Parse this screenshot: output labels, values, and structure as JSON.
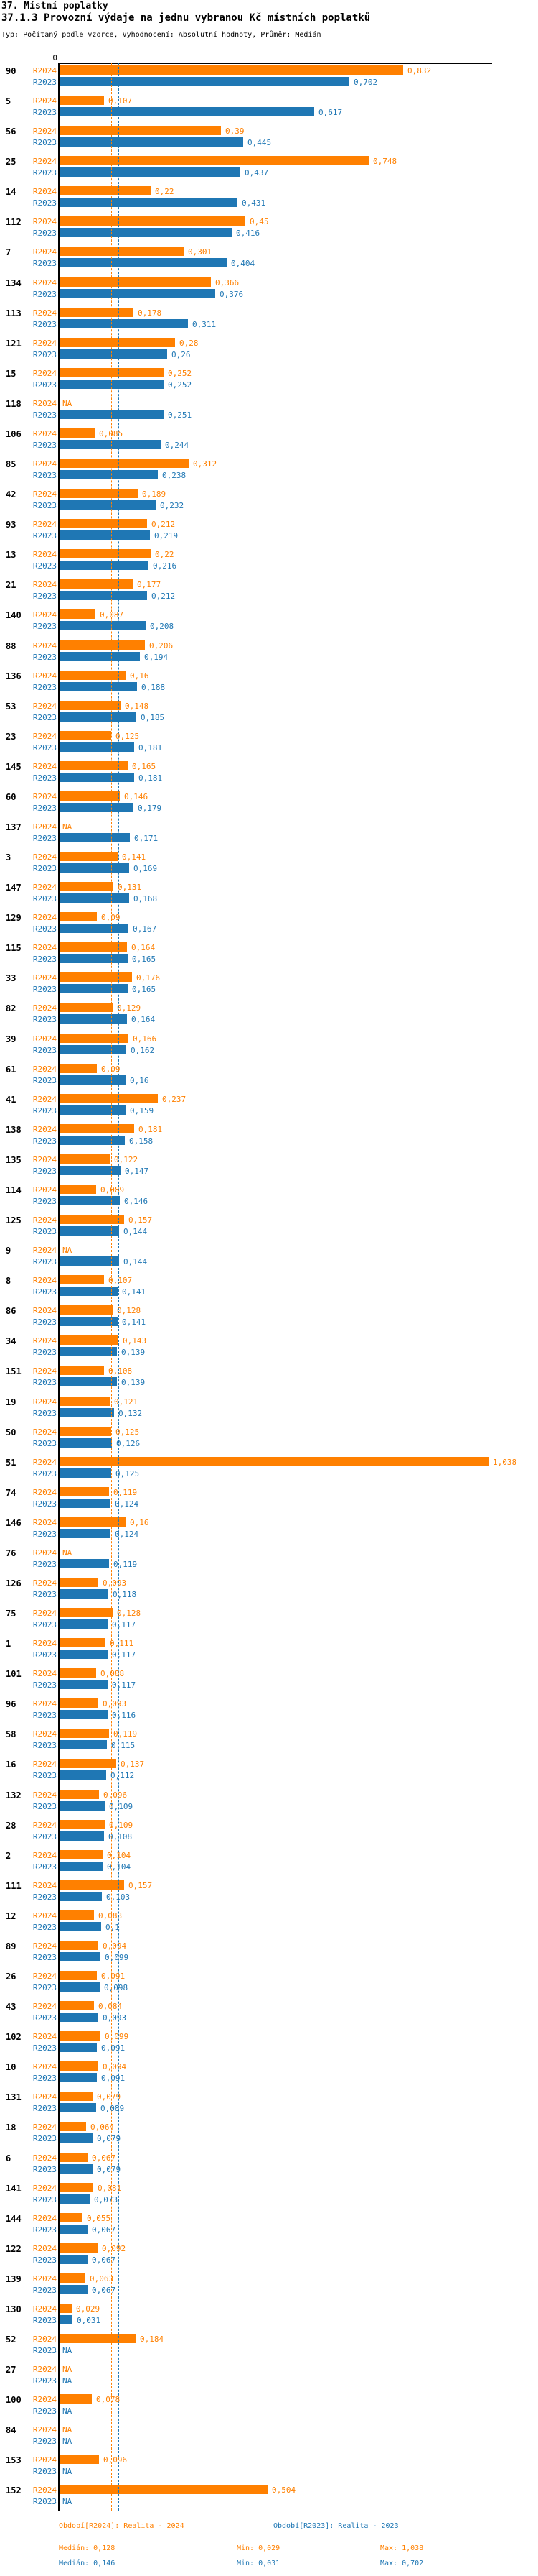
{
  "header": {
    "title": "37. Místní poplatky",
    "subtitle": "37.1.3 Provozní výdaje na jednu vybranou Kč místních poplatků",
    "meta": "Typ: Počítaný podle vzorce, Vyhodnocení: Absolutní hodnoty, Průměr: Medián"
  },
  "colors": {
    "r2024": "#FF8000",
    "r2023": "#1F77B4",
    "axis": "#000000"
  },
  "chart_data": {
    "type": "bar",
    "orientation": "horizontal",
    "title": "37.1.3 Provozní výdaje na jednu vybranou Kč místních poplatků",
    "axis_zero_label": "0",
    "na_label": "NA",
    "value_format": "czech decimal comma, trailing zeros trimmed",
    "xlim": [
      0,
      1.05
    ],
    "grid": false,
    "legend_position": "bottom",
    "series": [
      {
        "name": "R2024",
        "label": "Období[R2024]: Realita - 2024",
        "color": "#FF8000",
        "median": 0.128,
        "min": 0.029,
        "max": 1.038
      },
      {
        "name": "R2023",
        "label": "Období[R2023]: Realita - 2023",
        "color": "#1F77B4",
        "median": 0.146,
        "min": 0.031,
        "max": 0.702
      }
    ],
    "groups": [
      {
        "id": "90",
        "r2024": 0.832,
        "r2023": 0.702
      },
      {
        "id": "5",
        "r2024": 0.107,
        "r2023": 0.617
      },
      {
        "id": "56",
        "r2024": 0.39,
        "r2023": 0.445
      },
      {
        "id": "25",
        "r2024": 0.748,
        "r2023": 0.437
      },
      {
        "id": "14",
        "r2024": 0.22,
        "r2023": 0.431
      },
      {
        "id": "112",
        "r2024": 0.45,
        "r2023": 0.416
      },
      {
        "id": "7",
        "r2024": 0.301,
        "r2023": 0.404
      },
      {
        "id": "134",
        "r2024": 0.366,
        "r2023": 0.376
      },
      {
        "id": "113",
        "r2024": 0.178,
        "r2023": 0.311
      },
      {
        "id": "121",
        "r2024": 0.28,
        "r2023": 0.26
      },
      {
        "id": "15",
        "r2024": 0.252,
        "r2023": 0.252
      },
      {
        "id": "118",
        "r2024": null,
        "r2023": 0.251
      },
      {
        "id": "106",
        "r2024": 0.085,
        "r2023": 0.244
      },
      {
        "id": "85",
        "r2024": 0.312,
        "r2023": 0.238
      },
      {
        "id": "42",
        "r2024": 0.189,
        "r2023": 0.232
      },
      {
        "id": "93",
        "r2024": 0.212,
        "r2023": 0.219
      },
      {
        "id": "13",
        "r2024": 0.22,
        "r2023": 0.216
      },
      {
        "id": "21",
        "r2024": 0.177,
        "r2023": 0.212
      },
      {
        "id": "140",
        "r2024": 0.087,
        "r2023": 0.208
      },
      {
        "id": "88",
        "r2024": 0.206,
        "r2023": 0.194
      },
      {
        "id": "136",
        "r2024": 0.16,
        "r2023": 0.188
      },
      {
        "id": "53",
        "r2024": 0.148,
        "r2023": 0.185
      },
      {
        "id": "23",
        "r2024": 0.125,
        "r2023": 0.181
      },
      {
        "id": "145",
        "r2024": 0.165,
        "r2023": 0.181
      },
      {
        "id": "60",
        "r2024": 0.146,
        "r2023": 0.179
      },
      {
        "id": "137",
        "r2024": null,
        "r2023": 0.171
      },
      {
        "id": "3",
        "r2024": 0.141,
        "r2023": 0.169
      },
      {
        "id": "147",
        "r2024": 0.131,
        "r2023": 0.168
      },
      {
        "id": "129",
        "r2024": 0.09,
        "r2023": 0.167
      },
      {
        "id": "115",
        "r2024": 0.164,
        "r2023": 0.165
      },
      {
        "id": "33",
        "r2024": 0.176,
        "r2023": 0.165
      },
      {
        "id": "82",
        "r2024": 0.129,
        "r2023": 0.164
      },
      {
        "id": "39",
        "r2024": 0.166,
        "r2023": 0.162
      },
      {
        "id": "61",
        "r2024": 0.09,
        "r2023": 0.16
      },
      {
        "id": "41",
        "r2024": 0.237,
        "r2023": 0.159
      },
      {
        "id": "138",
        "r2024": 0.181,
        "r2023": 0.158
      },
      {
        "id": "135",
        "r2024": 0.122,
        "r2023": 0.147
      },
      {
        "id": "114",
        "r2024": 0.089,
        "r2023": 0.146
      },
      {
        "id": "125",
        "r2024": 0.157,
        "r2023": 0.144
      },
      {
        "id": "9",
        "r2024": null,
        "r2023": 0.144
      },
      {
        "id": "8",
        "r2024": 0.107,
        "r2023": 0.141
      },
      {
        "id": "86",
        "r2024": 0.128,
        "r2023": 0.141
      },
      {
        "id": "34",
        "r2024": 0.143,
        "r2023": 0.139
      },
      {
        "id": "151",
        "r2024": 0.108,
        "r2023": 0.139
      },
      {
        "id": "19",
        "r2024": 0.121,
        "r2023": 0.132
      },
      {
        "id": "50",
        "r2024": 0.125,
        "r2023": 0.126
      },
      {
        "id": "51",
        "r2024": 1.038,
        "r2023": 0.125
      },
      {
        "id": "74",
        "r2024": 0.119,
        "r2023": 0.124
      },
      {
        "id": "146",
        "r2024": 0.16,
        "r2023": 0.124
      },
      {
        "id": "76",
        "r2024": null,
        "r2023": 0.119
      },
      {
        "id": "126",
        "r2024": 0.093,
        "r2023": 0.118
      },
      {
        "id": "75",
        "r2024": 0.128,
        "r2023": 0.117
      },
      {
        "id": "1",
        "r2024": 0.111,
        "r2023": 0.117
      },
      {
        "id": "101",
        "r2024": 0.088,
        "r2023": 0.117
      },
      {
        "id": "96",
        "r2024": 0.093,
        "r2023": 0.116
      },
      {
        "id": "58",
        "r2024": 0.119,
        "r2023": 0.115
      },
      {
        "id": "16",
        "r2024": 0.137,
        "r2023": 0.112
      },
      {
        "id": "132",
        "r2024": 0.096,
        "r2023": 0.109
      },
      {
        "id": "28",
        "r2024": 0.109,
        "r2023": 0.108
      },
      {
        "id": "2",
        "r2024": 0.104,
        "r2023": 0.104
      },
      {
        "id": "111",
        "r2024": 0.157,
        "r2023": 0.103
      },
      {
        "id": "12",
        "r2024": 0.083,
        "r2023": 0.1
      },
      {
        "id": "89",
        "r2024": 0.094,
        "r2023": 0.099
      },
      {
        "id": "26",
        "r2024": 0.091,
        "r2023": 0.098
      },
      {
        "id": "43",
        "r2024": 0.084,
        "r2023": 0.093
      },
      {
        "id": "102",
        "r2024": 0.099,
        "r2023": 0.091
      },
      {
        "id": "10",
        "r2024": 0.094,
        "r2023": 0.091
      },
      {
        "id": "131",
        "r2024": 0.079,
        "r2023": 0.089
      },
      {
        "id": "18",
        "r2024": 0.064,
        "r2023": 0.079
      },
      {
        "id": "6",
        "r2024": 0.067,
        "r2023": 0.079
      },
      {
        "id": "141",
        "r2024": 0.081,
        "r2023": 0.073
      },
      {
        "id": "144",
        "r2024": 0.055,
        "r2023": 0.067
      },
      {
        "id": "122",
        "r2024": 0.092,
        "r2023": 0.067
      },
      {
        "id": "139",
        "r2024": 0.063,
        "r2023": 0.067
      },
      {
        "id": "130",
        "r2024": 0.029,
        "r2023": 0.031
      },
      {
        "id": "52",
        "r2024": 0.184,
        "r2023": null
      },
      {
        "id": "27",
        "r2024": null,
        "r2023": null
      },
      {
        "id": "100",
        "r2024": 0.078,
        "r2023": null
      },
      {
        "id": "84",
        "r2024": null,
        "r2023": null
      },
      {
        "id": "153",
        "r2024": 0.096,
        "r2023": null
      },
      {
        "id": "152",
        "r2024": 0.504,
        "r2023": null
      }
    ]
  },
  "footer": {
    "period_r2024": "Období[R2024]: Realita - 2024",
    "period_r2023": "Období[R2023]: Realita - 2023",
    "median_r2024": "Medián: 0,128",
    "median_r2023": "Medián: 0,146",
    "min_r2024": "Min: 0,029",
    "min_r2023": "Min: 0,031",
    "max_r2024": "Max: 1,038",
    "max_r2023": "Max: 0,702"
  }
}
